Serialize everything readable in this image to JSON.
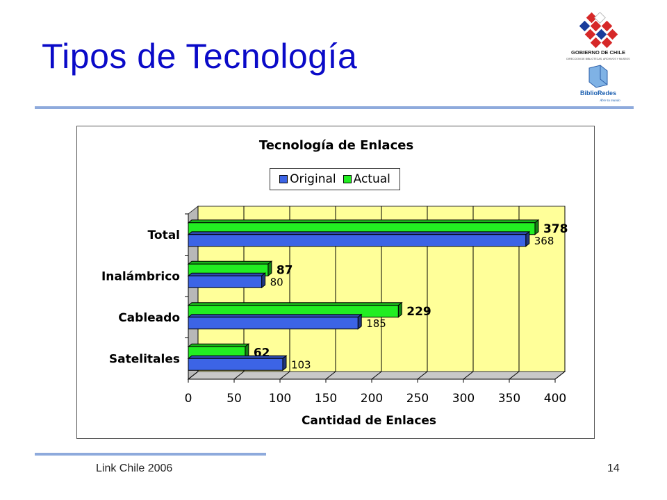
{
  "slide": {
    "title": "Tipos de Tecnología",
    "footer": "Link Chile 2006",
    "page_number": "14"
  },
  "logo": {
    "org_name": "GOBIERNO DE CHILE",
    "org_sub": "DIRECCION DE BIBLIOTECAS, ARCHIVOS Y MUSEOS",
    "brand": "BiblioRedes",
    "tagline": "Abre tu mundo"
  },
  "colors": {
    "title": "#0a0ac8",
    "rule": "#8eaadc",
    "plot_bg": "#ffff99",
    "original": "#3c64e6",
    "actual": "#22ee22"
  },
  "chart_data": {
    "type": "bar",
    "orientation": "horizontal",
    "title": "Tecnología de Enlaces",
    "xlabel": "Cantidad de Enlaces",
    "ylabel": "",
    "categories": [
      "Total",
      "Inalámbrico",
      "Cableado",
      "Satelitales"
    ],
    "series": [
      {
        "name": "Original",
        "values": [
          368,
          80,
          185,
          103
        ]
      },
      {
        "name": "Actual",
        "values": [
          378,
          87,
          229,
          62
        ]
      }
    ],
    "xlim": [
      0,
      400
    ],
    "xticks": [
      0,
      50,
      100,
      150,
      200,
      250,
      300,
      350,
      400
    ],
    "grid": true,
    "legend_position": "top"
  }
}
